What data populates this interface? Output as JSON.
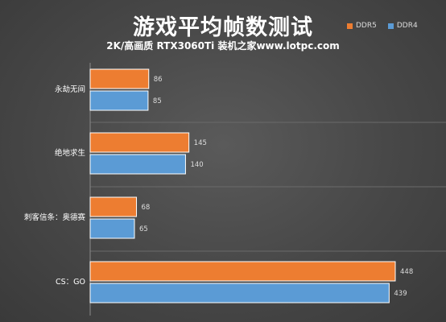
{
  "title": "游戏平均帧数测试",
  "subtitle": "2K/高画质 RTX3060Ti 装机之家www.lotpc.com",
  "colors": {
    "ddr5": "#ed7d31",
    "ddr4": "#5b9bd5"
  },
  "chart_data": {
    "type": "bar",
    "orientation": "horizontal",
    "title": "游戏平均帧数测试",
    "subtitle": "2K/高画质 RTX3060Ti 装机之家www.lotpc.com",
    "categories": [
      "永劫无间",
      "绝地求生",
      "刺客信条：奥德赛",
      "CS：GO"
    ],
    "series": [
      {
        "name": "DDR5",
        "color": "#ed7d31",
        "values": [
          86,
          145,
          68,
          448
        ]
      },
      {
        "name": "DDR4",
        "color": "#5b9bd5",
        "values": [
          85,
          140,
          65,
          439
        ]
      }
    ],
    "xlim": [
      0,
      500
    ],
    "legend_position": "top-right",
    "grid": false,
    "data_labels": true
  }
}
